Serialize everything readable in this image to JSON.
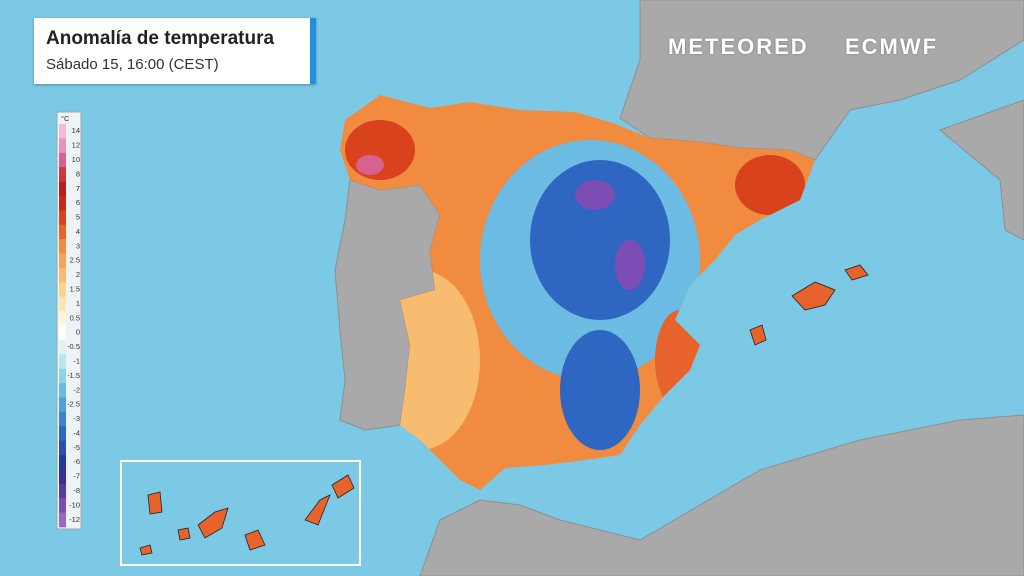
{
  "header": {
    "title": "Anomalía de temperatura",
    "subtitle": "Sábado 15, 16:00 (CEST)"
  },
  "brands": [
    "METEORED",
    "ECMWF"
  ],
  "legend": {
    "unit": "°C",
    "stops": [
      {
        "value": 14,
        "color": "#f7b8da"
      },
      {
        "value": 12,
        "color": "#e892c2"
      },
      {
        "value": 10,
        "color": "#d66290"
      },
      {
        "value": 8,
        "color": "#c83a40"
      },
      {
        "value": 7,
        "color": "#b81e1e"
      },
      {
        "value": 6,
        "color": "#c52a1f"
      },
      {
        "value": 5,
        "color": "#d8421d"
      },
      {
        "value": 4,
        "color": "#e8622b"
      },
      {
        "value": 3,
        "color": "#f08b3f"
      },
      {
        "value": 2.5,
        "color": "#f5a457"
      },
      {
        "value": 2,
        "color": "#f8bc70"
      },
      {
        "value": 1.5,
        "color": "#fad390"
      },
      {
        "value": 1,
        "color": "#fce7b4"
      },
      {
        "value": 0.5,
        "color": "#fff5dd"
      },
      {
        "value": 0,
        "color": "#ffffff"
      },
      {
        "value": -0.5,
        "color": "#dff3f3"
      },
      {
        "value": -1,
        "color": "#b8e6ea"
      },
      {
        "value": -1.5,
        "color": "#90d3e6"
      },
      {
        "value": -2,
        "color": "#6cbbe3"
      },
      {
        "value": -2.5,
        "color": "#4e9fdc"
      },
      {
        "value": -3,
        "color": "#3b82cf"
      },
      {
        "value": -4,
        "color": "#2f66c2"
      },
      {
        "value": -5,
        "color": "#2a4fae"
      },
      {
        "value": -6,
        "color": "#253a96"
      },
      {
        "value": -7,
        "color": "#3a2f8f"
      },
      {
        "value": -8,
        "color": "#5a3aa0"
      },
      {
        "value": -10,
        "color": "#7c4db5"
      },
      {
        "value": -12,
        "color": "#9a66c6"
      }
    ]
  }
}
